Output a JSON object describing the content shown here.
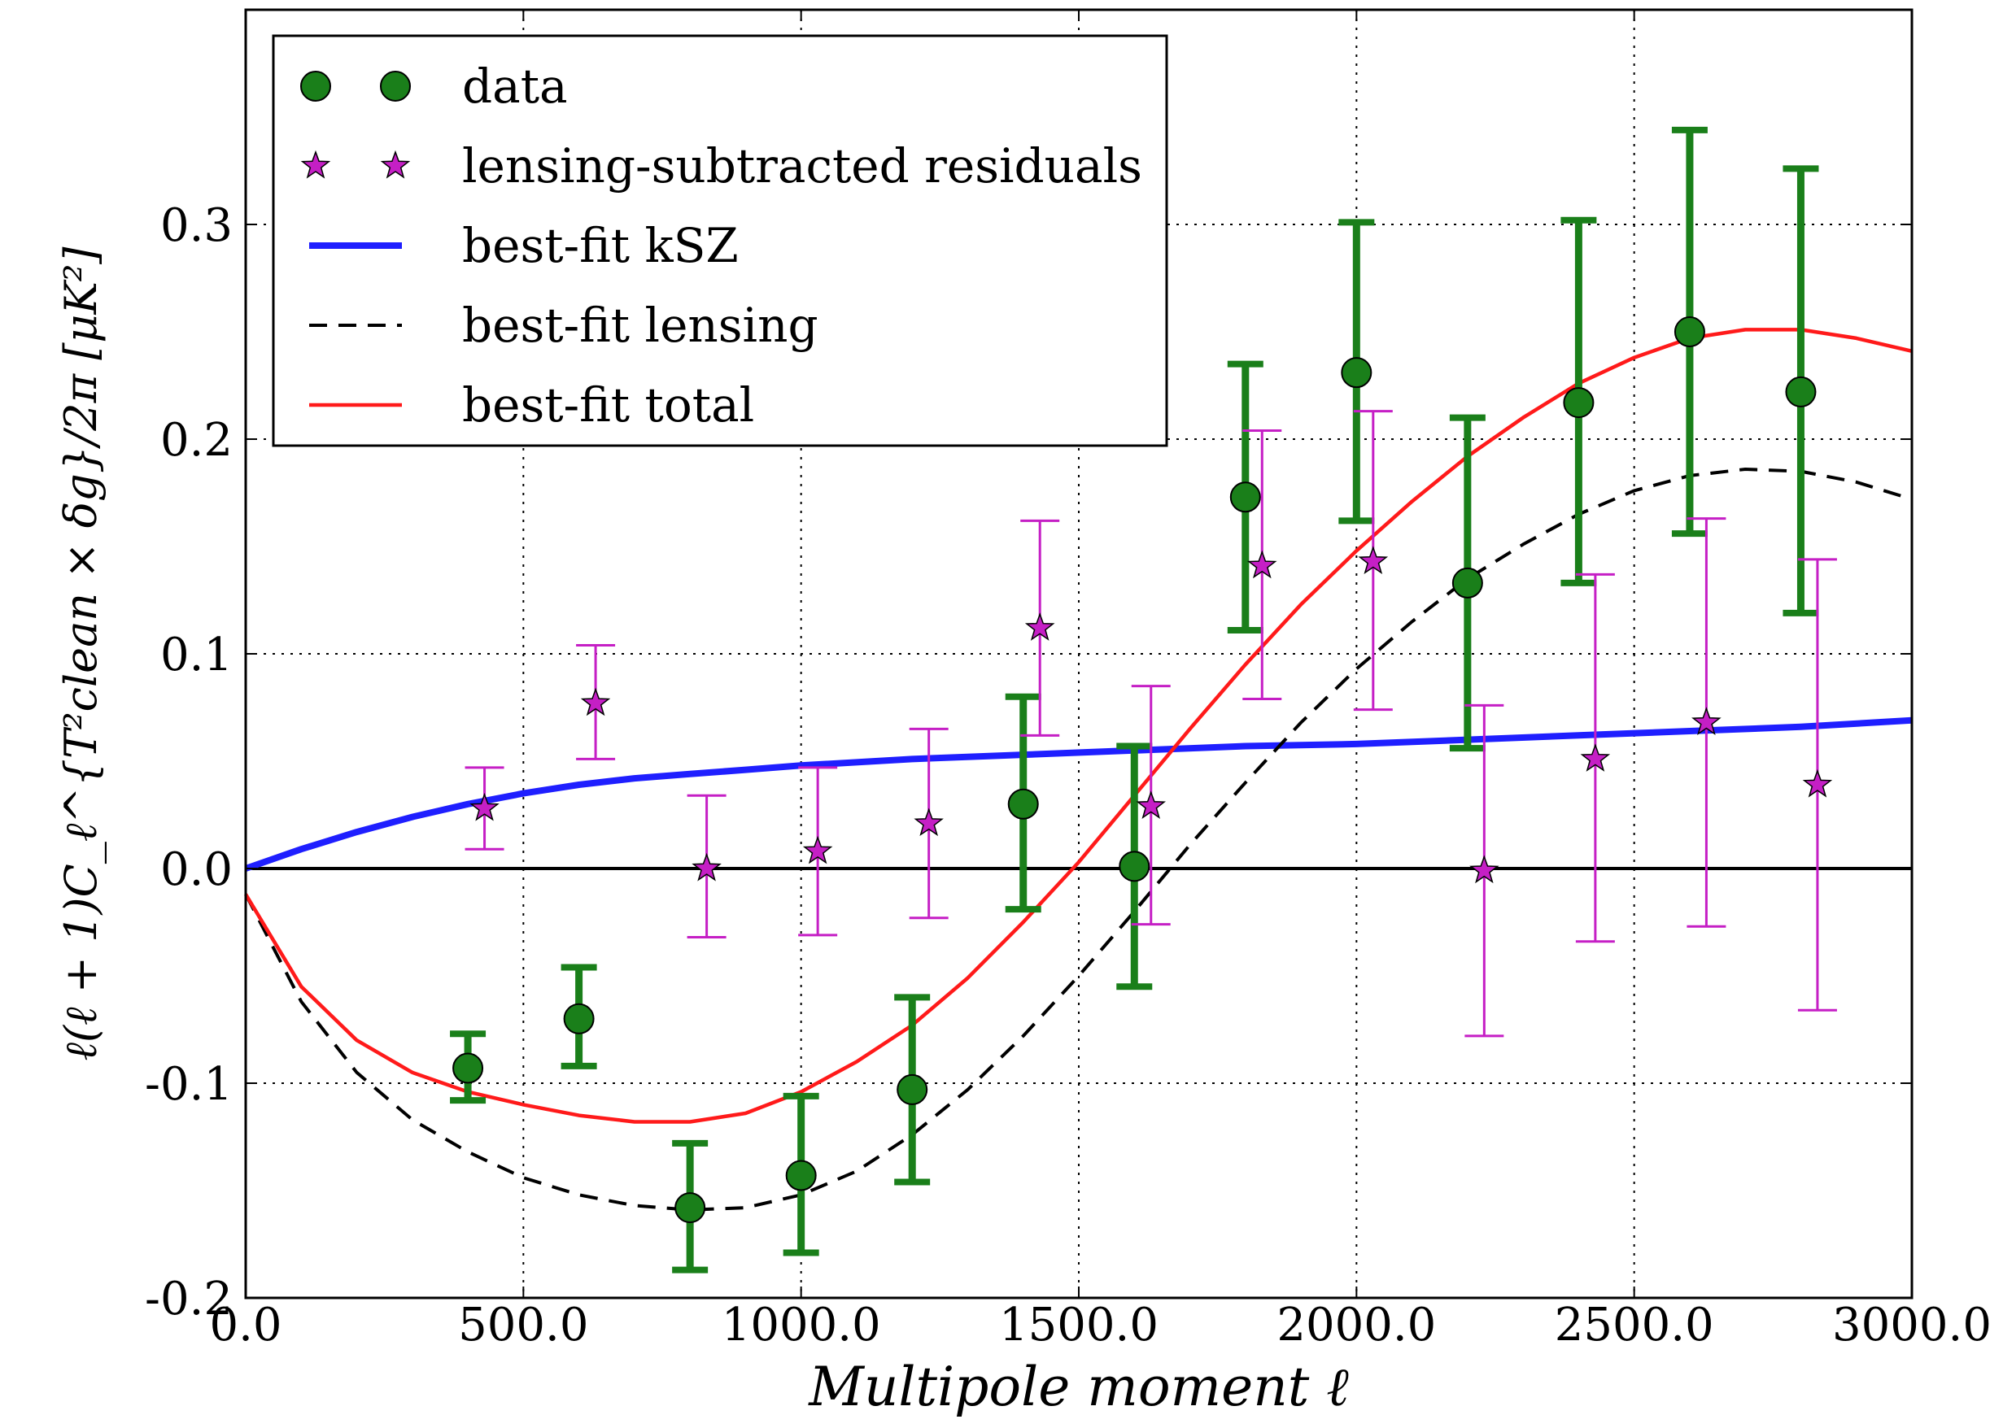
{
  "chart_data": {
    "type": "scatter",
    "xlabel": "Multipole moment ℓ",
    "ylabel": "ℓ(ℓ + 1)C_ℓ^{T²clean × δg}/2π [μK²]",
    "xlim": [
      0,
      3000
    ],
    "ylim": [
      -0.2,
      0.4
    ],
    "x_ticks": [
      0,
      500,
      1000,
      1500,
      2000,
      2500,
      3000
    ],
    "x_tick_labels": [
      "0.0",
      "500.0",
      "1000.0",
      "1500.0",
      "2000.0",
      "2500.0",
      "3000.0"
    ],
    "y_ticks": [
      -0.2,
      -0.1,
      0.0,
      0.1,
      0.2,
      0.3
    ],
    "y_tick_labels": [
      "-0.2",
      "-0.1",
      "0.0",
      "0.1",
      "0.2",
      "0.3"
    ],
    "grid": true,
    "legend_position": "top-left",
    "legend": [
      {
        "key": "data",
        "label": "data"
      },
      {
        "key": "residuals",
        "label": "lensing-subtracted residuals"
      },
      {
        "key": "ksz",
        "label": "best-fit kSZ"
      },
      {
        "key": "lensing",
        "label": "best-fit lensing"
      },
      {
        "key": "total",
        "label": "best-fit total"
      }
    ],
    "colors": {
      "data": "#1a7f1a",
      "residuals": "#c51fc5",
      "ksz": "#1f1fff",
      "lensing": "#000000",
      "total": "#ff1a1a",
      "zero_line": "#000000"
    },
    "series": [
      {
        "name": "data",
        "points": [
          {
            "x": 400,
            "y": -0.093,
            "ylo": -0.108,
            "yhi": -0.077
          },
          {
            "x": 600,
            "y": -0.07,
            "ylo": -0.092,
            "yhi": -0.046
          },
          {
            "x": 800,
            "y": -0.158,
            "ylo": -0.187,
            "yhi": -0.128
          },
          {
            "x": 1000,
            "y": -0.143,
            "ylo": -0.179,
            "yhi": -0.106
          },
          {
            "x": 1200,
            "y": -0.103,
            "ylo": -0.146,
            "yhi": -0.06
          },
          {
            "x": 1400,
            "y": 0.03,
            "ylo": -0.019,
            "yhi": 0.08
          },
          {
            "x": 1600,
            "y": 0.001,
            "ylo": -0.055,
            "yhi": 0.057
          },
          {
            "x": 1800,
            "y": 0.173,
            "ylo": 0.111,
            "yhi": 0.235
          },
          {
            "x": 2000,
            "y": 0.231,
            "ylo": 0.162,
            "yhi": 0.301
          },
          {
            "x": 2200,
            "y": 0.133,
            "ylo": 0.056,
            "yhi": 0.21
          },
          {
            "x": 2400,
            "y": 0.217,
            "ylo": 0.133,
            "yhi": 0.302
          },
          {
            "x": 2600,
            "y": 0.25,
            "ylo": 0.156,
            "yhi": 0.344
          },
          {
            "x": 2800,
            "y": 0.222,
            "ylo": 0.119,
            "yhi": 0.326
          }
        ]
      },
      {
        "name": "lensing-subtracted residuals",
        "points": [
          {
            "x": 430,
            "y": 0.028,
            "ylo": 0.009,
            "yhi": 0.047
          },
          {
            "x": 630,
            "y": 0.077,
            "ylo": 0.051,
            "yhi": 0.104
          },
          {
            "x": 830,
            "y": 0.0,
            "ylo": -0.032,
            "yhi": 0.034
          },
          {
            "x": 1030,
            "y": 0.008,
            "ylo": -0.031,
            "yhi": 0.047
          },
          {
            "x": 1230,
            "y": 0.021,
            "ylo": -0.023,
            "yhi": 0.065
          },
          {
            "x": 1430,
            "y": 0.112,
            "ylo": 0.062,
            "yhi": 0.162
          },
          {
            "x": 1630,
            "y": 0.029,
            "ylo": -0.026,
            "yhi": 0.085
          },
          {
            "x": 1830,
            "y": 0.141,
            "ylo": 0.079,
            "yhi": 0.204
          },
          {
            "x": 2030,
            "y": 0.143,
            "ylo": 0.074,
            "yhi": 0.213
          },
          {
            "x": 2230,
            "y": -0.001,
            "ylo": -0.078,
            "yhi": 0.076
          },
          {
            "x": 2430,
            "y": 0.051,
            "ylo": -0.034,
            "yhi": 0.137
          },
          {
            "x": 2630,
            "y": 0.068,
            "ylo": -0.027,
            "yhi": 0.163
          },
          {
            "x": 2830,
            "y": 0.039,
            "ylo": -0.066,
            "yhi": 0.144
          }
        ]
      },
      {
        "name": "best-fit kSZ",
        "x": [
          0,
          100,
          200,
          300,
          400,
          500,
          600,
          700,
          800,
          900,
          1000,
          1200,
          1400,
          1600,
          1800,
          2000,
          2200,
          2400,
          2600,
          2800,
          3000
        ],
        "y": [
          0.0,
          0.009,
          0.017,
          0.024,
          0.03,
          0.035,
          0.039,
          0.042,
          0.044,
          0.046,
          0.048,
          0.051,
          0.053,
          0.055,
          0.057,
          0.058,
          0.06,
          0.062,
          0.064,
          0.066,
          0.069
        ]
      },
      {
        "name": "best-fit lensing",
        "x": [
          0,
          100,
          200,
          300,
          400,
          500,
          600,
          700,
          800,
          900,
          1000,
          1100,
          1200,
          1300,
          1400,
          1500,
          1600,
          1700,
          1800,
          1900,
          2000,
          2100,
          2200,
          2300,
          2400,
          2500,
          2600,
          2700,
          2800,
          2900,
          3000
        ],
        "y": [
          -0.012,
          -0.062,
          -0.095,
          -0.117,
          -0.132,
          -0.144,
          -0.152,
          -0.157,
          -0.159,
          -0.158,
          -0.152,
          -0.141,
          -0.124,
          -0.103,
          -0.078,
          -0.05,
          -0.02,
          0.011,
          0.04,
          0.068,
          0.093,
          0.115,
          0.135,
          0.151,
          0.165,
          0.176,
          0.183,
          0.186,
          0.185,
          0.18,
          0.172
        ]
      },
      {
        "name": "best-fit total",
        "x": [
          0,
          100,
          200,
          300,
          400,
          500,
          600,
          700,
          800,
          900,
          1000,
          1100,
          1200,
          1300,
          1400,
          1500,
          1600,
          1700,
          1800,
          1900,
          2000,
          2100,
          2200,
          2300,
          2400,
          2500,
          2600,
          2700,
          2800,
          2900,
          3000
        ],
        "y": [
          -0.012,
          -0.055,
          -0.08,
          -0.095,
          -0.104,
          -0.11,
          -0.115,
          -0.118,
          -0.118,
          -0.114,
          -0.104,
          -0.09,
          -0.073,
          -0.051,
          -0.025,
          0.003,
          0.034,
          0.065,
          0.095,
          0.123,
          0.148,
          0.171,
          0.192,
          0.21,
          0.226,
          0.238,
          0.247,
          0.251,
          0.251,
          0.247,
          0.241
        ]
      }
    ]
  }
}
